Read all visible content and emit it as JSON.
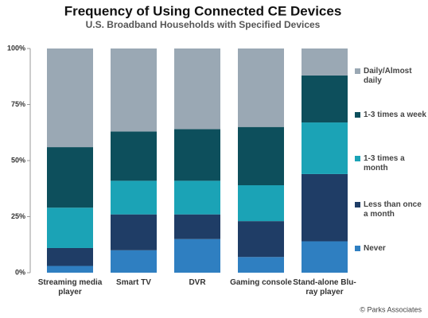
{
  "chart_data": {
    "type": "stacked_bar",
    "title": "Frequency of Using Connected CE Devices",
    "subtitle": "U.S. Broadband Households with Specified Devices",
    "source": "© Parks Associates",
    "categories": [
      "Streaming media player",
      "Smart TV",
      "DVR",
      "Gaming console",
      "Stand-alone Blu-ray player"
    ],
    "series": [
      {
        "name": "Never",
        "color": "#2f7fc1",
        "values": [
          3,
          10,
          15,
          7,
          14
        ]
      },
      {
        "name": "Less than once a month",
        "color": "#1f3d66",
        "values": [
          8,
          16,
          11,
          16,
          30
        ]
      },
      {
        "name": "1-3 times a month",
        "color": "#1ba3b6",
        "values": [
          18,
          15,
          15,
          16,
          23
        ]
      },
      {
        "name": "1-3 times a week",
        "color": "#0d4f5c",
        "values": [
          27,
          22,
          23,
          26,
          21
        ]
      },
      {
        "name": "Daily/Almost daily",
        "color": "#9aa8b4",
        "values": [
          44,
          37,
          36,
          35,
          12
        ]
      }
    ],
    "ylim": [
      0,
      100
    ],
    "yticks": [
      {
        "value": 0,
        "label": "0%"
      },
      {
        "value": 25,
        "label": "25%"
      },
      {
        "value": 50,
        "label": "50%"
      },
      {
        "value": 75,
        "label": "75%"
      },
      {
        "value": 100,
        "label": "100%"
      }
    ],
    "legend": "right"
  }
}
